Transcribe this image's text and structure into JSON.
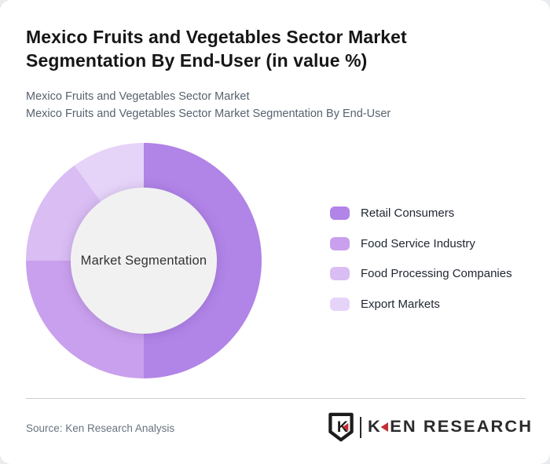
{
  "header": {
    "title_line1": "Mexico Fruits and Vegetables Sector Market",
    "title_line2": "Segmentation By End-User (in value %)",
    "subtitle_line1": "Mexico Fruits and Vegetables Sector Market",
    "subtitle_line2": "Mexico Fruits and Vegetables Sector Market Segmentation By End-User"
  },
  "chart_data": {
    "type": "pie",
    "variant": "donut",
    "title": "Mexico Fruits and Vegetables Sector Market Segmentation By End-User (in value %)",
    "center_label": "Market Segmentation",
    "categories": [
      "Retail Consumers",
      "Food Service Industry",
      "Food Processing Companies",
      "Export Markets"
    ],
    "values": [
      50,
      25,
      15,
      10
    ],
    "unit": "percent of value",
    "colors": [
      "#b184e8",
      "#c9a0ed",
      "#d9bdf3",
      "#e6d4f8"
    ],
    "inner_circle_color": "#f1f1f2",
    "start_angle_deg": 0,
    "direction": "clockwise",
    "legend_position": "right",
    "data_labels": "none"
  },
  "footer": {
    "source_label": "Source: Ken Research Analysis",
    "logo": {
      "shield_letter": "K",
      "wordmark_first_letter": "K",
      "wordmark_rest": "EN RESEARCH",
      "accent_color": "#c12f35",
      "text_color": "#2b2b2b"
    }
  }
}
